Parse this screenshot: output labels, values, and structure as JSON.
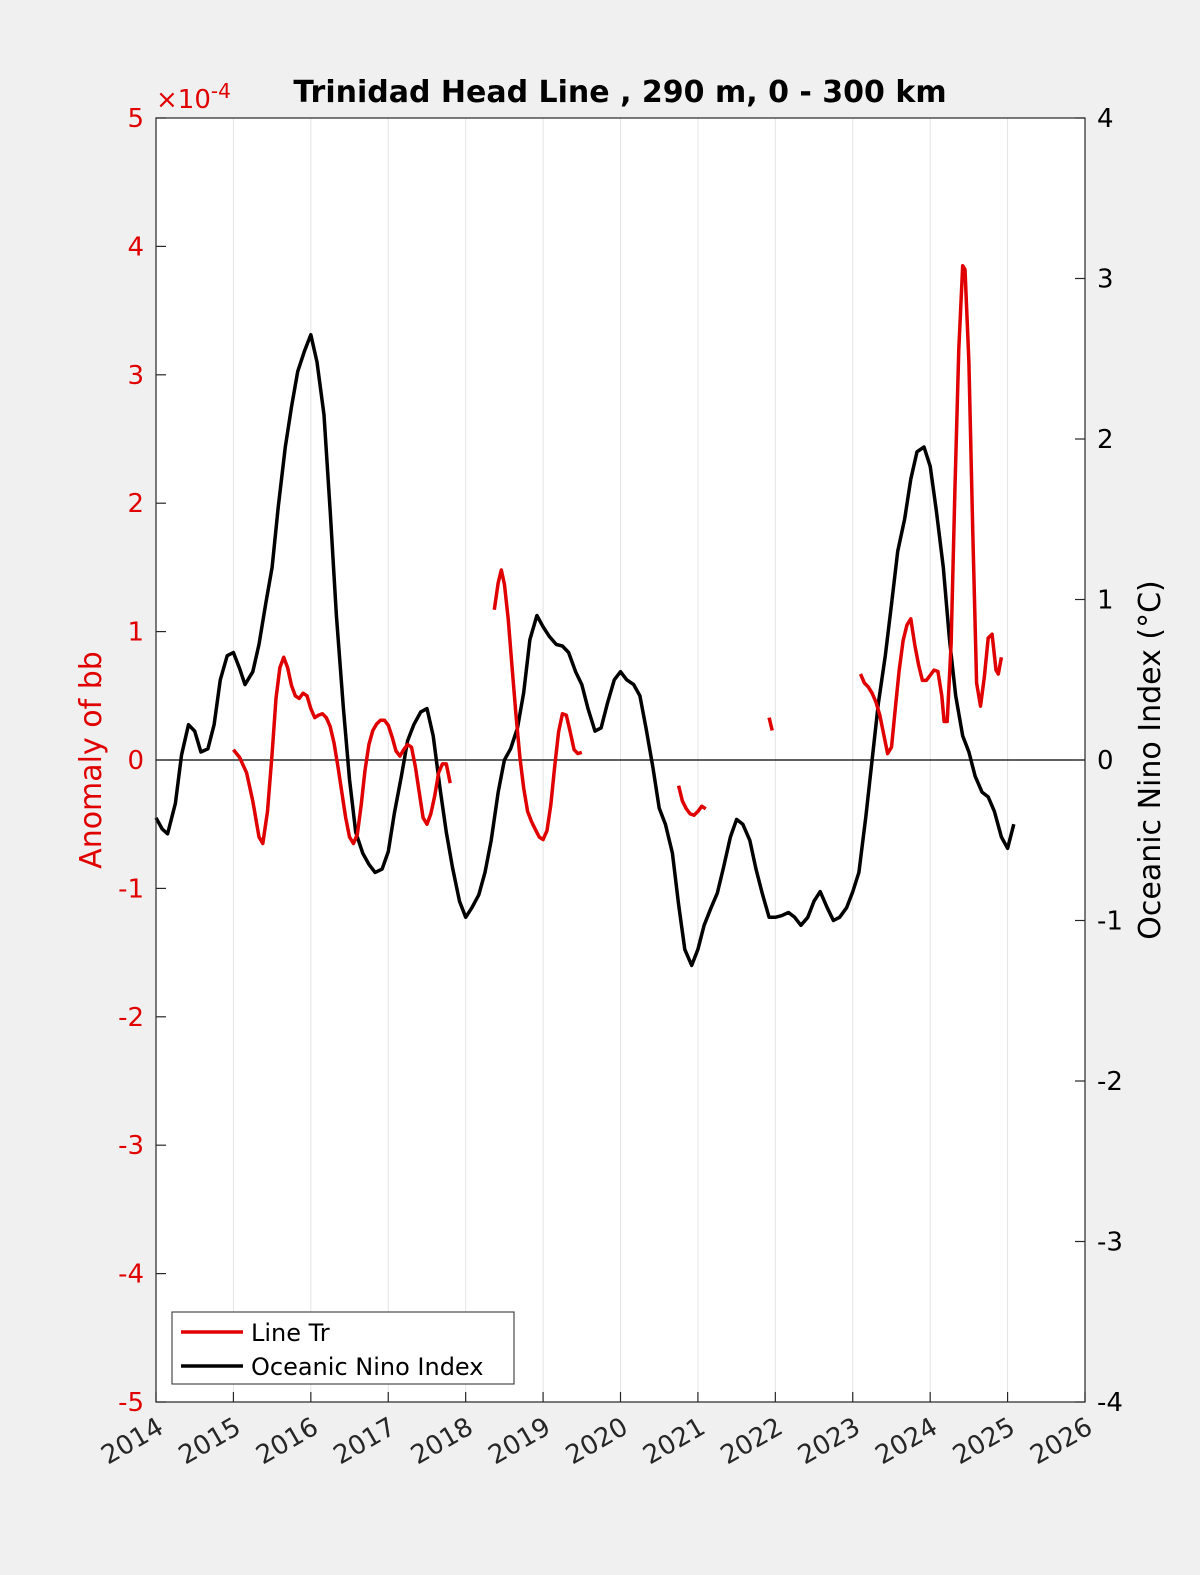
{
  "chart_data": {
    "type": "line",
    "title": "Trinidad Head Line , 290 m, 0 - 300 km",
    "xlim": [
      2014,
      2026
    ],
    "x_ticks": [
      "2014",
      "2015",
      "2016",
      "2017",
      "2018",
      "2019",
      "2020",
      "2021",
      "2022",
      "2023",
      "2024",
      "2025",
      "2026"
    ],
    "left_axis": {
      "label": "Anomaly of bb",
      "ylim": [
        -5,
        5
      ],
      "ticks": [
        "-5",
        "-4",
        "-3",
        "-2",
        "-1",
        "0",
        "1",
        "2",
        "3",
        "4",
        "5"
      ],
      "multiplier": "×10",
      "multiplier_exp": "-4",
      "color": "#e00000"
    },
    "right_axis": {
      "label": "Oceanic Nino Index (°C)",
      "ylim": [
        -4,
        4
      ],
      "ticks": [
        "-4",
        "-3",
        "-2",
        "-1",
        "0",
        "1",
        "2",
        "3",
        "4"
      ],
      "color": "#000000"
    },
    "grid": "vertical",
    "legend_position": "bottom-left",
    "series": [
      {
        "name": "Line Tr",
        "axis": "left",
        "color": "#e00000",
        "segments": [
          [
            [
              2015.0,
              0.08
            ],
            [
              2015.08,
              0.02
            ],
            [
              2015.17,
              -0.1
            ],
            [
              2015.25,
              -0.32
            ],
            [
              2015.33,
              -0.6
            ],
            [
              2015.38,
              -0.65
            ],
            [
              2015.44,
              -0.4
            ],
            [
              2015.5,
              0.05
            ],
            [
              2015.55,
              0.48
            ],
            [
              2015.6,
              0.72
            ],
            [
              2015.65,
              0.8
            ],
            [
              2015.7,
              0.72
            ],
            [
              2015.75,
              0.58
            ],
            [
              2015.8,
              0.5
            ],
            [
              2015.85,
              0.48
            ],
            [
              2015.9,
              0.52
            ],
            [
              2015.95,
              0.5
            ],
            [
              2016.0,
              0.4
            ],
            [
              2016.05,
              0.33
            ],
            [
              2016.1,
              0.35
            ],
            [
              2016.15,
              0.36
            ],
            [
              2016.2,
              0.33
            ],
            [
              2016.25,
              0.26
            ],
            [
              2016.3,
              0.13
            ],
            [
              2016.35,
              -0.05
            ],
            [
              2016.4,
              -0.25
            ],
            [
              2016.45,
              -0.45
            ],
            [
              2016.5,
              -0.6
            ],
            [
              2016.55,
              -0.65
            ],
            [
              2016.6,
              -0.58
            ],
            [
              2016.65,
              -0.35
            ],
            [
              2016.7,
              -0.08
            ],
            [
              2016.75,
              0.12
            ],
            [
              2016.8,
              0.23
            ],
            [
              2016.85,
              0.28
            ],
            [
              2016.9,
              0.31
            ],
            [
              2016.95,
              0.31
            ],
            [
              2017.0,
              0.27
            ],
            [
              2017.05,
              0.18
            ],
            [
              2017.1,
              0.07
            ],
            [
              2017.15,
              0.03
            ],
            [
              2017.2,
              0.08
            ],
            [
              2017.25,
              0.12
            ],
            [
              2017.3,
              0.1
            ],
            [
              2017.35,
              -0.05
            ],
            [
              2017.4,
              -0.25
            ],
            [
              2017.45,
              -0.45
            ],
            [
              2017.5,
              -0.5
            ],
            [
              2017.55,
              -0.42
            ],
            [
              2017.6,
              -0.28
            ],
            [
              2017.65,
              -0.1
            ],
            [
              2017.7,
              -0.03
            ],
            [
              2017.75,
              -0.03
            ],
            [
              2017.8,
              -0.18
            ]
          ],
          [
            [
              2018.37,
              1.17
            ],
            [
              2018.42,
              1.38
            ],
            [
              2018.46,
              1.48
            ],
            [
              2018.5,
              1.37
            ],
            [
              2018.55,
              1.1
            ],
            [
              2018.6,
              0.72
            ],
            [
              2018.65,
              0.35
            ],
            [
              2018.7,
              0.02
            ],
            [
              2018.75,
              -0.22
            ],
            [
              2018.8,
              -0.4
            ],
            [
              2018.85,
              -0.48
            ],
            [
              2018.9,
              -0.54
            ],
            [
              2018.95,
              -0.6
            ],
            [
              2019.0,
              -0.62
            ],
            [
              2019.05,
              -0.55
            ],
            [
              2019.1,
              -0.35
            ],
            [
              2019.15,
              -0.05
            ],
            [
              2019.2,
              0.22
            ],
            [
              2019.25,
              0.36
            ],
            [
              2019.3,
              0.35
            ],
            [
              2019.35,
              0.22
            ],
            [
              2019.4,
              0.08
            ],
            [
              2019.45,
              0.05
            ],
            [
              2019.5,
              0.06
            ]
          ],
          [
            [
              2020.75,
              -0.2
            ],
            [
              2020.8,
              -0.32
            ],
            [
              2020.85,
              -0.38
            ],
            [
              2020.9,
              -0.42
            ],
            [
              2020.95,
              -0.43
            ],
            [
              2021.0,
              -0.4
            ],
            [
              2021.05,
              -0.36
            ],
            [
              2021.1,
              -0.38
            ]
          ],
          [
            [
              2021.92,
              0.33
            ],
            [
              2021.96,
              0.23
            ]
          ],
          [
            [
              2023.1,
              0.67
            ],
            [
              2023.15,
              0.6
            ],
            [
              2023.2,
              0.57
            ],
            [
              2023.25,
              0.52
            ],
            [
              2023.3,
              0.45
            ],
            [
              2023.35,
              0.35
            ],
            [
              2023.4,
              0.2
            ],
            [
              2023.45,
              0.05
            ],
            [
              2023.5,
              0.1
            ],
            [
              2023.55,
              0.4
            ],
            [
              2023.6,
              0.7
            ],
            [
              2023.65,
              0.93
            ],
            [
              2023.7,
              1.05
            ],
            [
              2023.75,
              1.1
            ],
            [
              2023.8,
              0.9
            ],
            [
              2023.85,
              0.74
            ],
            [
              2023.9,
              0.62
            ],
            [
              2023.95,
              0.62
            ],
            [
              2024.0,
              0.66
            ],
            [
              2024.05,
              0.7
            ],
            [
              2024.1,
              0.69
            ],
            [
              2024.15,
              0.5
            ],
            [
              2024.18,
              0.3
            ],
            [
              2024.22,
              0.3
            ],
            [
              2024.27,
              0.9
            ],
            [
              2024.32,
              2.1
            ],
            [
              2024.37,
              3.2
            ],
            [
              2024.42,
              3.85
            ],
            [
              2024.45,
              3.82
            ],
            [
              2024.5,
              3.1
            ],
            [
              2024.55,
              1.8
            ],
            [
              2024.6,
              0.6
            ],
            [
              2024.65,
              0.42
            ],
            [
              2024.7,
              0.65
            ],
            [
              2024.75,
              0.95
            ],
            [
              2024.8,
              0.98
            ],
            [
              2024.85,
              0.7
            ],
            [
              2024.88,
              0.67
            ],
            [
              2024.92,
              0.8
            ]
          ]
        ]
      },
      {
        "name": "Oceanic Nino Index",
        "axis": "right",
        "color": "#000000",
        "segments": [
          [
            [
              2014.0,
              -0.36
            ],
            [
              2014.08,
              -0.43
            ],
            [
              2014.15,
              -0.46
            ],
            [
              2014.25,
              -0.27
            ],
            [
              2014.33,
              0.03
            ],
            [
              2014.42,
              0.22
            ],
            [
              2014.5,
              0.18
            ],
            [
              2014.58,
              0.05
            ],
            [
              2014.67,
              0.07
            ],
            [
              2014.75,
              0.22
            ],
            [
              2014.83,
              0.5
            ],
            [
              2014.92,
              0.65
            ],
            [
              2015.0,
              0.67
            ],
            [
              2015.08,
              0.57
            ],
            [
              2015.15,
              0.47
            ],
            [
              2015.25,
              0.55
            ],
            [
              2015.33,
              0.72
            ],
            [
              2015.42,
              0.98
            ],
            [
              2015.5,
              1.2
            ],
            [
              2015.58,
              1.58
            ],
            [
              2015.67,
              1.95
            ],
            [
              2015.75,
              2.2
            ],
            [
              2015.83,
              2.42
            ],
            [
              2015.92,
              2.55
            ],
            [
              2016.0,
              2.65
            ],
            [
              2016.08,
              2.48
            ],
            [
              2016.17,
              2.15
            ],
            [
              2016.25,
              1.55
            ],
            [
              2016.33,
              0.9
            ],
            [
              2016.42,
              0.33
            ],
            [
              2016.5,
              -0.12
            ],
            [
              2016.58,
              -0.45
            ],
            [
              2016.67,
              -0.58
            ],
            [
              2016.75,
              -0.65
            ],
            [
              2016.83,
              -0.7
            ],
            [
              2016.92,
              -0.68
            ],
            [
              2017.0,
              -0.57
            ],
            [
              2017.08,
              -0.33
            ],
            [
              2017.17,
              -0.1
            ],
            [
              2017.25,
              0.12
            ],
            [
              2017.33,
              0.22
            ],
            [
              2017.42,
              0.3
            ],
            [
              2017.5,
              0.32
            ],
            [
              2017.58,
              0.15
            ],
            [
              2017.67,
              -0.18
            ],
            [
              2017.75,
              -0.45
            ],
            [
              2017.83,
              -0.67
            ],
            [
              2017.92,
              -0.88
            ],
            [
              2018.0,
              -0.98
            ],
            [
              2018.08,
              -0.92
            ],
            [
              2018.17,
              -0.84
            ],
            [
              2018.25,
              -0.7
            ],
            [
              2018.33,
              -0.5
            ],
            [
              2018.42,
              -0.2
            ],
            [
              2018.5,
              0.0
            ],
            [
              2018.58,
              0.07
            ],
            [
              2018.67,
              0.2
            ],
            [
              2018.75,
              0.42
            ],
            [
              2018.83,
              0.75
            ],
            [
              2018.92,
              0.9
            ],
            [
              2019.0,
              0.83
            ],
            [
              2019.08,
              0.77
            ],
            [
              2019.17,
              0.72
            ],
            [
              2019.25,
              0.71
            ],
            [
              2019.33,
              0.67
            ],
            [
              2019.42,
              0.55
            ],
            [
              2019.5,
              0.47
            ],
            [
              2019.58,
              0.32
            ],
            [
              2019.67,
              0.18
            ],
            [
              2019.75,
              0.2
            ],
            [
              2019.83,
              0.35
            ],
            [
              2019.92,
              0.5
            ],
            [
              2020.0,
              0.55
            ],
            [
              2020.08,
              0.5
            ],
            [
              2020.17,
              0.47
            ],
            [
              2020.25,
              0.4
            ],
            [
              2020.33,
              0.2
            ],
            [
              2020.42,
              -0.05
            ],
            [
              2020.5,
              -0.3
            ],
            [
              2020.58,
              -0.4
            ],
            [
              2020.67,
              -0.58
            ],
            [
              2020.75,
              -0.9
            ],
            [
              2020.83,
              -1.18
            ],
            [
              2020.92,
              -1.28
            ],
            [
              2021.0,
              -1.18
            ],
            [
              2021.08,
              -1.03
            ],
            [
              2021.17,
              -0.92
            ],
            [
              2021.25,
              -0.83
            ],
            [
              2021.33,
              -0.67
            ],
            [
              2021.42,
              -0.48
            ],
            [
              2021.5,
              -0.37
            ],
            [
              2021.58,
              -0.4
            ],
            [
              2021.67,
              -0.5
            ],
            [
              2021.75,
              -0.68
            ],
            [
              2021.83,
              -0.83
            ],
            [
              2021.92,
              -0.98
            ],
            [
              2022.0,
              -0.98
            ],
            [
              2022.08,
              -0.97
            ],
            [
              2022.17,
              -0.95
            ],
            [
              2022.25,
              -0.98
            ],
            [
              2022.33,
              -1.03
            ],
            [
              2022.42,
              -0.98
            ],
            [
              2022.5,
              -0.88
            ],
            [
              2022.58,
              -0.82
            ],
            [
              2022.67,
              -0.92
            ],
            [
              2022.75,
              -1.0
            ],
            [
              2022.83,
              -0.98
            ],
            [
              2022.92,
              -0.92
            ],
            [
              2023.0,
              -0.82
            ],
            [
              2023.08,
              -0.7
            ],
            [
              2023.17,
              -0.35
            ],
            [
              2023.25,
              0.0
            ],
            [
              2023.33,
              0.35
            ],
            [
              2023.42,
              0.65
            ],
            [
              2023.5,
              0.97
            ],
            [
              2023.58,
              1.3
            ],
            [
              2023.67,
              1.5
            ],
            [
              2023.75,
              1.75
            ],
            [
              2023.83,
              1.92
            ],
            [
              2023.92,
              1.95
            ],
            [
              2024.0,
              1.83
            ],
            [
              2024.08,
              1.55
            ],
            [
              2024.17,
              1.2
            ],
            [
              2024.25,
              0.75
            ],
            [
              2024.33,
              0.4
            ],
            [
              2024.42,
              0.15
            ],
            [
              2024.5,
              0.05
            ],
            [
              2024.58,
              -0.1
            ],
            [
              2024.67,
              -0.2
            ],
            [
              2024.75,
              -0.23
            ],
            [
              2024.83,
              -0.32
            ],
            [
              2024.92,
              -0.48
            ],
            [
              2025.0,
              -0.55
            ],
            [
              2025.08,
              -0.4
            ]
          ]
        ]
      }
    ]
  }
}
